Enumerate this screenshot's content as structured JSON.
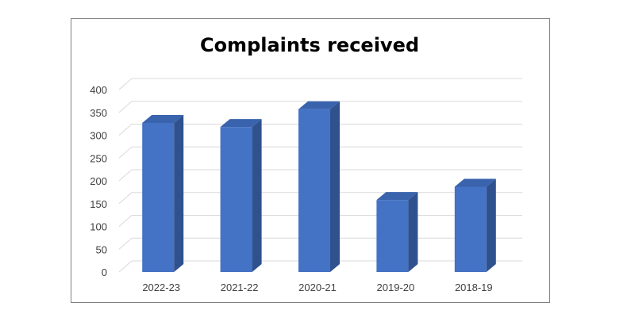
{
  "chart_data": {
    "type": "bar",
    "title": "Complaints received",
    "xlabel": "",
    "ylabel": "",
    "categories": [
      "2022-23",
      "2021-22",
      "2020-21",
      "2019-20",
      "2018-19"
    ],
    "values": [
      327,
      318,
      357,
      158,
      187
    ],
    "ylim": [
      0,
      400
    ],
    "yticks": [
      0,
      50,
      100,
      150,
      200,
      250,
      300,
      350,
      400
    ],
    "grid": true,
    "style": "3d-column",
    "colors": {
      "bar_front": "#4472c4",
      "bar_side": "#2f528f",
      "bar_top": "#3a63ad",
      "grid": "#d9d9d9"
    }
  }
}
